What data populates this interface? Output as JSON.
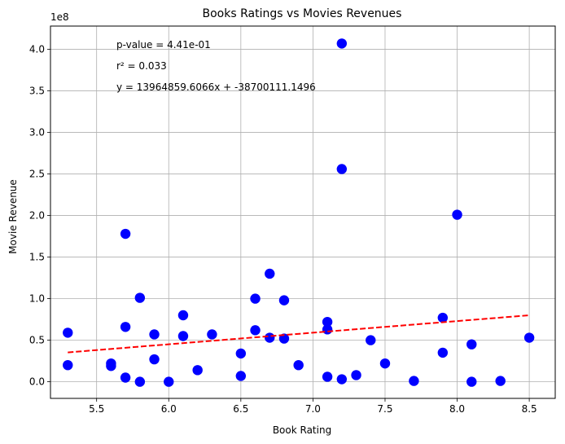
{
  "chart_data": {
    "type": "scatter",
    "title": "Books Ratings vs Movies Revenues",
    "xlabel": "Book Rating",
    "ylabel": "Movie Revenue",
    "y_offset_label": "1e8",
    "xlim": [
      5.18,
      8.68
    ],
    "ylim": [
      -0.2,
      4.28
    ],
    "x_ticks": [
      5.5,
      6.0,
      6.5,
      7.0,
      7.5,
      8.0,
      8.5
    ],
    "x_tick_labels": [
      "5.5",
      "6.0",
      "6.5",
      "7.0",
      "7.5",
      "8.0",
      "8.5"
    ],
    "y_ticks": [
      0.0,
      0.5,
      1.0,
      1.5,
      2.0,
      2.5,
      3.0,
      3.5,
      4.0
    ],
    "y_tick_labels": [
      "0.0",
      "0.5",
      "1.0",
      "1.5",
      "2.0",
      "2.5",
      "3.0",
      "3.5",
      "4.0"
    ],
    "grid": true,
    "annotations": [
      "p-value = 4.41e-01",
      "r² = 0.033",
      "y = 13964859.6066x + -38700111.1496"
    ],
    "point_color": "#0000ff",
    "line_color": "#ff0000",
    "points": [
      {
        "x": 5.3,
        "y": 0.59
      },
      {
        "x": 5.3,
        "y": 0.2
      },
      {
        "x": 5.6,
        "y": 0.22
      },
      {
        "x": 5.6,
        "y": 0.19
      },
      {
        "x": 5.7,
        "y": 1.78
      },
      {
        "x": 5.7,
        "y": 0.66
      },
      {
        "x": 5.7,
        "y": 0.05
      },
      {
        "x": 5.8,
        "y": 1.01
      },
      {
        "x": 5.8,
        "y": 0.0
      },
      {
        "x": 5.9,
        "y": 0.57
      },
      {
        "x": 5.9,
        "y": 0.27
      },
      {
        "x": 6.0,
        "y": 0.0
      },
      {
        "x": 6.1,
        "y": 0.8
      },
      {
        "x": 6.1,
        "y": 0.55
      },
      {
        "x": 6.2,
        "y": 0.14
      },
      {
        "x": 6.3,
        "y": 0.57
      },
      {
        "x": 6.5,
        "y": 0.34
      },
      {
        "x": 6.5,
        "y": 0.07
      },
      {
        "x": 6.6,
        "y": 1.0
      },
      {
        "x": 6.6,
        "y": 0.62
      },
      {
        "x": 6.7,
        "y": 1.3
      },
      {
        "x": 6.7,
        "y": 0.53
      },
      {
        "x": 6.8,
        "y": 0.98
      },
      {
        "x": 6.8,
        "y": 0.52
      },
      {
        "x": 6.9,
        "y": 0.2
      },
      {
        "x": 7.1,
        "y": 0.72
      },
      {
        "x": 7.1,
        "y": 0.63
      },
      {
        "x": 7.1,
        "y": 0.06
      },
      {
        "x": 7.2,
        "y": 4.07
      },
      {
        "x": 7.2,
        "y": 2.56
      },
      {
        "x": 7.2,
        "y": 0.03
      },
      {
        "x": 7.3,
        "y": 0.08
      },
      {
        "x": 7.4,
        "y": 0.5
      },
      {
        "x": 7.5,
        "y": 0.22
      },
      {
        "x": 7.7,
        "y": 0.01
      },
      {
        "x": 7.9,
        "y": 0.77
      },
      {
        "x": 7.9,
        "y": 0.35
      },
      {
        "x": 8.0,
        "y": 2.01
      },
      {
        "x": 8.1,
        "y": 0.45
      },
      {
        "x": 8.1,
        "y": 0.0
      },
      {
        "x": 8.3,
        "y": 0.01
      },
      {
        "x": 8.5,
        "y": 0.53
      }
    ],
    "regression": {
      "slope": 13964859.6066,
      "intercept": -38700111.1496,
      "x_range": [
        5.3,
        8.5
      ]
    }
  }
}
